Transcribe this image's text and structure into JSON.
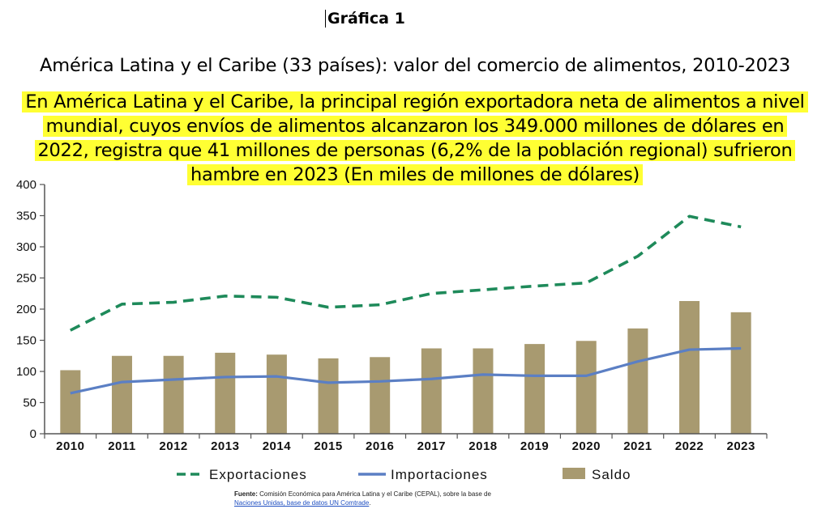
{
  "figure_label": "Gráfica 1",
  "title": "América Latina y el Caribe (33 países): valor del comercio de alimentos, 2010-2023",
  "subtitle_lines": [
    "En América Latina y el Caribe, la principal región exportadora neta de alimentos a nivel",
    "mundial, cuyos envíos de alimentos alcanzaron los 349.000 millones de dólares en",
    "2022, registra que 41 millones de personas (6,2% de la población regional) sufrieron",
    "hambre en 2023 (En miles de millones de dólares)"
  ],
  "source": {
    "label": "Fuente:",
    "text": "Comisión Económica para América Latina y el Caribe (CEPAL), sobre la base de",
    "link_text": "Naciones Unidas, base de datos UN Comtrade",
    "end": "."
  },
  "colors": {
    "exports": "#1e8a5a",
    "imports": "#5b7fc4",
    "balance": "#a89a70",
    "axis": "#555555"
  },
  "chart_data": {
    "type": "bar+line",
    "categories": [
      "2010",
      "2011",
      "2012",
      "2013",
      "2014",
      "2015",
      "2016",
      "2017",
      "2018",
      "2019",
      "2020",
      "2021",
      "2022",
      "2023"
    ],
    "yticks": [
      0,
      50,
      100,
      150,
      200,
      250,
      300,
      350,
      400
    ],
    "ylim": [
      0,
      400
    ],
    "series": [
      {
        "name": "Exportaciones",
        "type": "line",
        "style": "dashed",
        "values": [
          166,
          208,
          211,
          221,
          219,
          203,
          207,
          225,
          231,
          237,
          242,
          285,
          349,
          332
        ]
      },
      {
        "name": "Importaciones",
        "type": "line",
        "style": "solid",
        "values": [
          65,
          83,
          87,
          91,
          92,
          82,
          84,
          88,
          95,
          93,
          93,
          116,
          135,
          137
        ]
      },
      {
        "name": "Saldo",
        "type": "bar",
        "values": [
          102,
          125,
          125,
          130,
          127,
          121,
          123,
          137,
          137,
          144,
          149,
          169,
          213,
          195
        ]
      }
    ],
    "legend": [
      {
        "key": "exports",
        "label": "Exportaciones"
      },
      {
        "key": "imports",
        "label": "Importaciones"
      },
      {
        "key": "balance",
        "label": "Saldo"
      }
    ],
    "legend_position": "bottom",
    "grid": false
  }
}
